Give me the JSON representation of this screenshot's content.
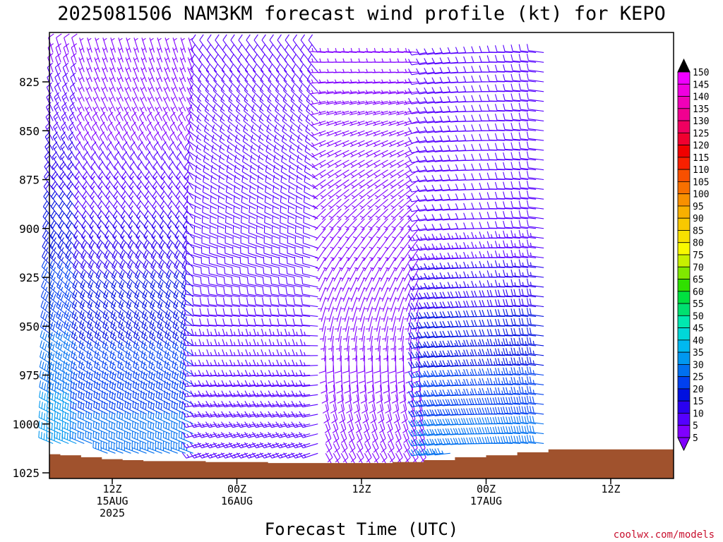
{
  "chart_data": {
    "type": "wind-barb-profile",
    "title": "2025081506 NAM3KM forecast wind profile (kt) for KEPO",
    "xlabel": "Forecast Time (UTC)",
    "ylabel": "",
    "credit": "coolwx.com/models",
    "y_axis": {
      "reversed": true,
      "range": [
        1025,
        805
      ],
      "ticks": [
        825,
        850,
        875,
        900,
        925,
        950,
        975,
        1000,
        1025
      ]
    },
    "x_axis": {
      "range_hours": [
        6,
        54
      ],
      "ticks": [
        {
          "hour": 12,
          "lines": [
            "12Z",
            "15AUG",
            "2025"
          ]
        },
        {
          "hour": 24,
          "lines": [
            "00Z",
            "16AUG"
          ]
        },
        {
          "hour": 36,
          "lines": [
            "12Z"
          ]
        },
        {
          "hour": 48,
          "lines": [
            "00Z",
            "17AUG"
          ]
        },
        {
          "hour": 60,
          "lines": [
            "12Z"
          ]
        }
      ]
    },
    "colorbar": {
      "levels": [
        5,
        10,
        15,
        20,
        25,
        30,
        35,
        40,
        45,
        50,
        55,
        60,
        65,
        70,
        75,
        80,
        85,
        90,
        95,
        100,
        105,
        110,
        115,
        120,
        125,
        130,
        135,
        140,
        145,
        150
      ],
      "colors": [
        "#8000ff",
        "#5500ff",
        "#2a00f0",
        "#0010e0",
        "#0040f0",
        "#0070f0",
        "#0098f0",
        "#00b8f0",
        "#00d8d8",
        "#00e8b0",
        "#00e070",
        "#00e040",
        "#30e000",
        "#80e800",
        "#c8f000",
        "#f8f800",
        "#f8e000",
        "#f8c800",
        "#f8b000",
        "#f89000",
        "#f87000",
        "#f85000",
        "#f82000",
        "#f00000",
        "#f00030",
        "#f00060",
        "#f00090",
        "#f000b8",
        "#f000e0",
        "#f000ff"
      ],
      "tip_colors": [
        "#000000",
        "#8000ff"
      ]
    },
    "barb_levels": [
      810,
      815,
      820,
      825,
      830,
      835,
      840,
      845,
      850,
      855,
      860,
      865,
      870,
      875,
      880,
      885,
      890,
      895,
      900,
      905,
      910,
      915,
      920,
      925,
      930,
      935,
      940,
      945,
      950,
      955,
      960,
      965,
      970,
      975,
      980,
      985,
      990,
      995,
      1000,
      1005,
      1010,
      1015,
      1020
    ],
    "surface_pressure": {
      "hours": [
        6,
        7,
        9,
        11,
        13,
        15,
        18,
        21,
        24,
        27,
        30,
        33,
        36,
        39,
        42,
        45,
        48,
        51,
        54
      ],
      "values": [
        1015.5,
        1016,
        1017,
        1018,
        1018.5,
        1019,
        1019,
        1019.5,
        1019.5,
        1020,
        1020,
        1020,
        1020,
        1019.5,
        1018.5,
        1017,
        1016,
        1014.5,
        1013
      ],
      "color": "#a0522d"
    }
  }
}
